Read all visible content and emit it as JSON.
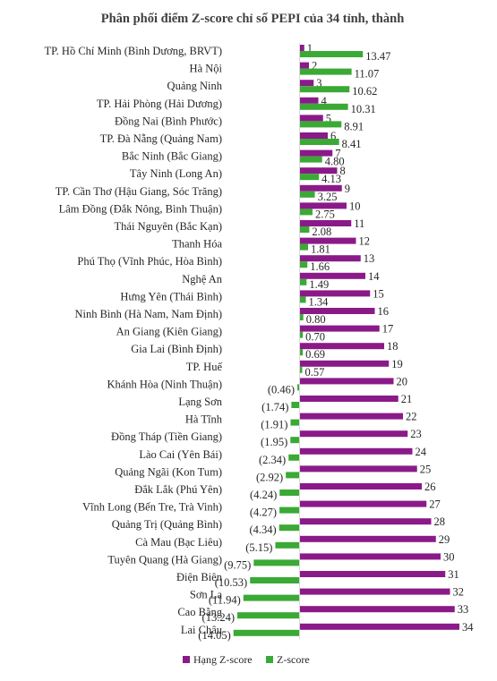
{
  "chart_data": {
    "type": "bar",
    "orientation": "horizontal",
    "title": "Phân phối điểm Z-score chỉ số PEPI của 34 tỉnh, thành",
    "categories": [
      "TP. Hồ Chí Minh (Bình Dương, BRVT)",
      "Hà Nội",
      "Quảng Ninh",
      "TP. Hải Phòng (Hải Dương)",
      "Đồng Nai (Bình Phước)",
      "TP. Đà Nẵng (Quảng Nam)",
      "Bắc Ninh (Bắc Giang)",
      "Tây Ninh (Long An)",
      "TP. Cần Thơ (Hậu Giang, Sóc Trăng)",
      "Lâm Đồng (Đắk Nông, Bình Thuận)",
      "Thái Nguyên (Bắc Kạn)",
      "Thanh Hóa",
      "Phú Thọ (Vĩnh Phúc, Hòa Bình)",
      "Nghệ An",
      "Hưng Yên (Thái Bình)",
      "Ninh Bình (Hà Nam, Nam Định)",
      "An Giang (Kiên Giang)",
      "Gia Lai (Bình Định)",
      "TP. Huế",
      "Khánh Hòa (Ninh Thuận)",
      "Lạng Sơn",
      "Hà Tĩnh",
      "Đồng Tháp (Tiền Giang)",
      "Lào Cai (Yên Bái)",
      "Quảng Ngãi (Kon Tum)",
      "Đắk Lắk (Phú Yên)",
      "Vĩnh Long (Bến Tre, Trà Vinh)",
      "Quảng Trị (Quảng Bình)",
      "Cà Mau (Bạc Liêu)",
      "Tuyên Quang (Hà Giang)",
      "Điện Biên",
      "Sơn La",
      "Cao Bằng",
      "Lai Châu"
    ],
    "series": [
      {
        "name": "Hạng Z-score",
        "color": "#8B1A89",
        "values": [
          1,
          2,
          3,
          4,
          5,
          6,
          7,
          8,
          9,
          10,
          11,
          12,
          13,
          14,
          15,
          16,
          17,
          18,
          19,
          20,
          21,
          22,
          23,
          24,
          25,
          26,
          27,
          28,
          29,
          30,
          31,
          32,
          33,
          34
        ],
        "labels": [
          "1",
          "2",
          "3",
          "4",
          "5",
          "6",
          "7",
          "8",
          "9",
          "10",
          "11",
          "12",
          "13",
          "14",
          "15",
          "16",
          "17",
          "18",
          "19",
          "20",
          "21",
          "22",
          "23",
          "24",
          "25",
          "26",
          "27",
          "28",
          "29",
          "30",
          "31",
          "32",
          "33",
          "34"
        ]
      },
      {
        "name": "Z-score",
        "color": "#3BA935",
        "values": [
          13.47,
          11.07,
          10.62,
          10.31,
          8.91,
          8.41,
          4.8,
          4.13,
          3.25,
          2.75,
          2.08,
          1.81,
          1.66,
          1.49,
          1.34,
          0.8,
          0.7,
          0.69,
          0.57,
          -0.46,
          -1.74,
          -1.91,
          -1.95,
          -2.34,
          -2.92,
          -4.24,
          -4.27,
          -4.34,
          -5.15,
          -9.75,
          -10.53,
          -11.94,
          -13.24,
          -14.05
        ],
        "labels": [
          "13.47",
          "11.07",
          "10.62",
          "10.31",
          "8.91",
          "8.41",
          "4.80",
          "4.13",
          "3.25",
          "2.75",
          "2.08",
          "1.81",
          "1.66",
          "1.49",
          "1.34",
          "0.80",
          "0.70",
          "0.69",
          "0.57",
          "(0.46)",
          "(1.74)",
          "(1.91)",
          "(1.95)",
          "(2.34)",
          "(2.92)",
          "(4.24)",
          "(4.27)",
          "(4.34)",
          "(5.15)",
          "(9.75)",
          "(10.53)",
          "(11.94)",
          "(13.24)",
          "(14.05)"
        ]
      }
    ],
    "xlim": [
      -15,
      35
    ],
    "grid": false,
    "legend_position": "bottom"
  }
}
